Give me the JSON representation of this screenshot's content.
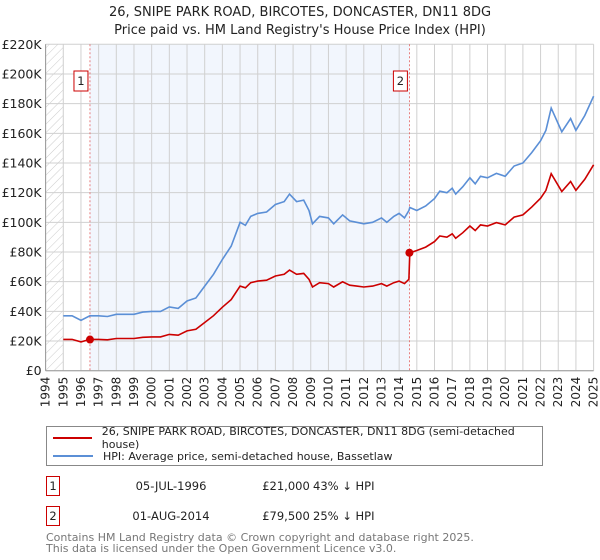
{
  "chart_data": {
    "type": "line",
    "title": "26, SNIPE PARK ROAD, BIRCOTES, DONCASTER, DN11 8DG",
    "subtitle": "Price paid vs. HM Land Registry's House Price Index (HPI)",
    "xlabel": "",
    "ylabel": "",
    "xlim": [
      1994,
      2025
    ],
    "ylim": [
      0,
      220000
    ],
    "grid": true,
    "y_ticks": [
      {
        "value": 0,
        "label": "£0"
      },
      {
        "value": 20000,
        "label": "£20K"
      },
      {
        "value": 40000,
        "label": "£40K"
      },
      {
        "value": 60000,
        "label": "£60K"
      },
      {
        "value": 80000,
        "label": "£80K"
      },
      {
        "value": 100000,
        "label": "£100K"
      },
      {
        "value": 120000,
        "label": "£120K"
      },
      {
        "value": 140000,
        "label": "£140K"
      },
      {
        "value": 160000,
        "label": "£160K"
      },
      {
        "value": 180000,
        "label": "£180K"
      },
      {
        "value": 200000,
        "label": "£200K"
      },
      {
        "value": 220000,
        "label": "£220K"
      }
    ],
    "x_ticks": [
      "1994",
      "1995",
      "1996",
      "1997",
      "1998",
      "1999",
      "2000",
      "2001",
      "2002",
      "2003",
      "2004",
      "2005",
      "2006",
      "2007",
      "2008",
      "2009",
      "2010",
      "2011",
      "2012",
      "2013",
      "2014",
      "2015",
      "2016",
      "2017",
      "2018",
      "2019",
      "2020",
      "2021",
      "2022",
      "2023",
      "2024",
      "2025"
    ],
    "x": [
      1995.0,
      1995.5,
      1996.0,
      1996.5,
      1997.0,
      1997.5,
      1998.0,
      1998.5,
      1999.0,
      1999.5,
      2000.0,
      2000.5,
      2001.0,
      2001.5,
      2002.0,
      2002.5,
      2003.0,
      2003.5,
      2004.0,
      2004.5,
      2005.0,
      2005.3,
      2005.6,
      2006.0,
      2006.5,
      2007.0,
      2007.5,
      2007.8,
      2008.2,
      2008.6,
      2008.9,
      2009.1,
      2009.5,
      2010.0,
      2010.3,
      2010.8,
      2011.2,
      2011.6,
      2012.0,
      2012.5,
      2013.0,
      2013.3,
      2013.7,
      2014.0,
      2014.3,
      2014.55,
      2014.6,
      2015.0,
      2015.5,
      2016.0,
      2016.3,
      2016.7,
      2017.0,
      2017.2,
      2017.6,
      2018.0,
      2018.3,
      2018.6,
      2019.0,
      2019.5,
      2020.0,
      2020.5,
      2021.0,
      2021.5,
      2022.0,
      2022.3,
      2022.6,
      2023.2,
      2023.7,
      2024.0,
      2024.5,
      2025.0
    ],
    "series": [
      {
        "name": "26, SNIPE PARK ROAD, BIRCOTES, DONCASTER, DN11 8DG (semi-detached house)",
        "color": "#cc0000",
        "values_k": [
          21.1,
          21.1,
          19.4,
          21.1,
          21.1,
          20.8,
          21.7,
          21.7,
          21.7,
          22.5,
          22.8,
          22.8,
          24.5,
          23.9,
          26.8,
          27.9,
          32.5,
          37.1,
          42.8,
          47.9,
          57,
          55.9,
          59.3,
          60.4,
          61,
          63.8,
          65,
          67.8,
          65,
          65.6,
          61.6,
          56.4,
          59.3,
          58.7,
          56.4,
          59.9,
          57.6,
          57,
          56.4,
          57,
          58.7,
          57,
          59.3,
          60.4,
          58.7,
          61.6,
          79.5,
          81,
          83.3,
          87,
          90.8,
          90,
          92.3,
          89.3,
          93,
          97.5,
          94.5,
          98.3,
          97.5,
          99.8,
          98.3,
          103.5,
          105,
          110.3,
          116.3,
          121.5,
          132.8,
          120.8,
          127.5,
          121.5,
          129,
          138.8
        ]
      },
      {
        "name": "HPI: Average price, semi-detached house, Bassetlaw",
        "color": "#5b8fd6",
        "values_k": [
          37,
          37,
          34,
          37,
          37,
          36.5,
          38,
          38,
          38,
          39.5,
          40,
          40,
          43,
          42,
          47,
          49,
          57,
          65,
          75,
          84,
          100,
          98,
          104,
          106,
          107,
          112,
          114,
          119,
          114,
          115,
          108,
          99,
          104,
          103,
          99,
          105,
          101,
          100,
          99,
          100,
          103,
          100,
          104,
          106,
          103,
          108,
          110,
          108,
          111,
          116,
          121,
          120,
          123,
          119,
          124,
          130,
          126,
          131,
          130,
          133,
          131,
          138,
          140,
          147,
          155,
          162,
          177,
          161,
          170,
          162,
          172,
          185
        ]
      }
    ],
    "sales": [
      {
        "label": "1",
        "x": 1996.51,
        "value": 21000,
        "date": "05-JUL-1996",
        "price": "£21,000",
        "hpi": "43% ↓ HPI"
      },
      {
        "label": "2",
        "x": 2014.58,
        "value": 79500,
        "date": "01-AUG-2014",
        "price": "£79,500",
        "hpi": "25% ↓ HPI"
      }
    ],
    "legend_position": "below"
  },
  "footer": {
    "line1": "Contains HM Land Registry data © Crown copyright and database right 2025.",
    "line2": "This data is licensed under the Open Government Licence v3.0."
  }
}
